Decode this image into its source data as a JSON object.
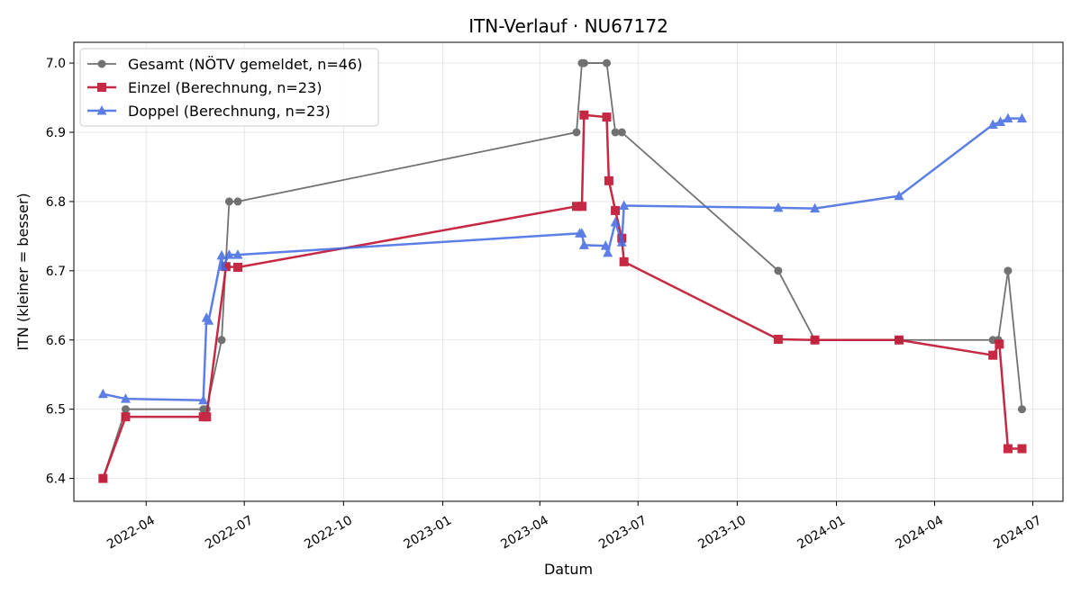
{
  "chart_data": {
    "type": "line",
    "title": "ITN-Verlauf · NU67172",
    "xlabel": "Datum",
    "ylabel": "ITN  (kleiner = besser)",
    "xlim": [
      "2022-01-24",
      "2024-07-29"
    ],
    "ylim": [
      6.367,
      7.03
    ],
    "x_ticks": [
      "2022-04",
      "2022-07",
      "2022-10",
      "2023-01",
      "2023-04",
      "2023-07",
      "2023-10",
      "2024-01",
      "2024-04",
      "2024-07"
    ],
    "y_ticks": [
      "6.4",
      "6.5",
      "6.6",
      "6.7",
      "6.8",
      "6.9",
      "7.0"
    ],
    "grid": true,
    "legend_position": "top-left",
    "series": [
      {
        "name": "Gesamt (NÖTV gemeldet, n=46)",
        "color": "#444444",
        "marker": "circle",
        "points": [
          [
            "2022-02-20",
            6.4
          ],
          [
            "2022-03-13",
            6.5
          ],
          [
            "2022-05-24",
            6.5
          ],
          [
            "2022-05-27",
            6.5
          ],
          [
            "2022-06-10",
            6.6
          ],
          [
            "2022-06-17",
            6.8
          ],
          [
            "2022-06-25",
            6.8
          ],
          [
            "2023-05-05",
            6.9
          ],
          [
            "2023-05-10",
            7.0
          ],
          [
            "2023-05-12",
            7.0
          ],
          [
            "2023-06-02",
            7.0
          ],
          [
            "2023-06-10",
            6.9
          ],
          [
            "2023-06-16",
            6.9
          ],
          [
            "2023-11-08",
            6.7
          ],
          [
            "2023-12-12",
            6.6
          ],
          [
            "2024-02-28",
            6.6
          ],
          [
            "2024-05-25",
            6.6
          ],
          [
            "2024-05-30",
            6.6
          ],
          [
            "2024-06-08",
            6.7
          ],
          [
            "2024-06-21",
            6.5
          ]
        ]
      },
      {
        "name": "Einzel (Berechnung, n=23)",
        "color": "#c41e3a",
        "marker": "square",
        "points": [
          [
            "2022-02-20",
            6.4
          ],
          [
            "2022-03-13",
            6.489
          ],
          [
            "2022-05-24",
            6.489
          ],
          [
            "2022-05-27",
            6.489
          ],
          [
            "2022-06-14",
            6.706
          ],
          [
            "2022-06-25",
            6.705
          ],
          [
            "2023-05-05",
            6.793
          ],
          [
            "2023-05-10",
            6.793
          ],
          [
            "2023-05-12",
            6.925
          ],
          [
            "2023-06-02",
            6.922
          ],
          [
            "2023-06-04",
            6.83
          ],
          [
            "2023-06-10",
            6.787
          ],
          [
            "2023-06-16",
            6.747
          ],
          [
            "2023-06-18",
            6.713
          ],
          [
            "2023-11-08",
            6.601
          ],
          [
            "2023-12-12",
            6.6
          ],
          [
            "2024-02-28",
            6.6
          ],
          [
            "2024-05-25",
            6.578
          ],
          [
            "2024-05-31",
            6.594
          ],
          [
            "2024-06-08",
            6.443
          ],
          [
            "2024-06-21",
            6.443
          ]
        ]
      },
      {
        "name": "Doppel (Berechnung, n=23)",
        "color": "#4169e1",
        "marker": "triangle",
        "points": [
          [
            "2022-02-20",
            6.522
          ],
          [
            "2022-03-13",
            6.515
          ],
          [
            "2022-05-24",
            6.513
          ],
          [
            "2022-05-27",
            6.632
          ],
          [
            "2022-05-29",
            6.628
          ],
          [
            "2022-06-10",
            6.722
          ],
          [
            "2022-06-11",
            6.706
          ],
          [
            "2022-06-17",
            6.723
          ],
          [
            "2022-06-25",
            6.723
          ],
          [
            "2023-05-08",
            6.754
          ],
          [
            "2023-05-10",
            6.754
          ],
          [
            "2023-05-12",
            6.737
          ],
          [
            "2023-06-01",
            6.736
          ],
          [
            "2023-06-03",
            6.726
          ],
          [
            "2023-06-10",
            6.77
          ],
          [
            "2023-06-16",
            6.741
          ],
          [
            "2023-06-18",
            6.794
          ],
          [
            "2023-11-08",
            6.791
          ],
          [
            "2023-12-12",
            6.79
          ],
          [
            "2024-02-28",
            6.808
          ],
          [
            "2024-05-25",
            6.911
          ],
          [
            "2024-06-01",
            6.915
          ],
          [
            "2024-06-08",
            6.92
          ],
          [
            "2024-06-21",
            6.92
          ]
        ]
      }
    ]
  }
}
